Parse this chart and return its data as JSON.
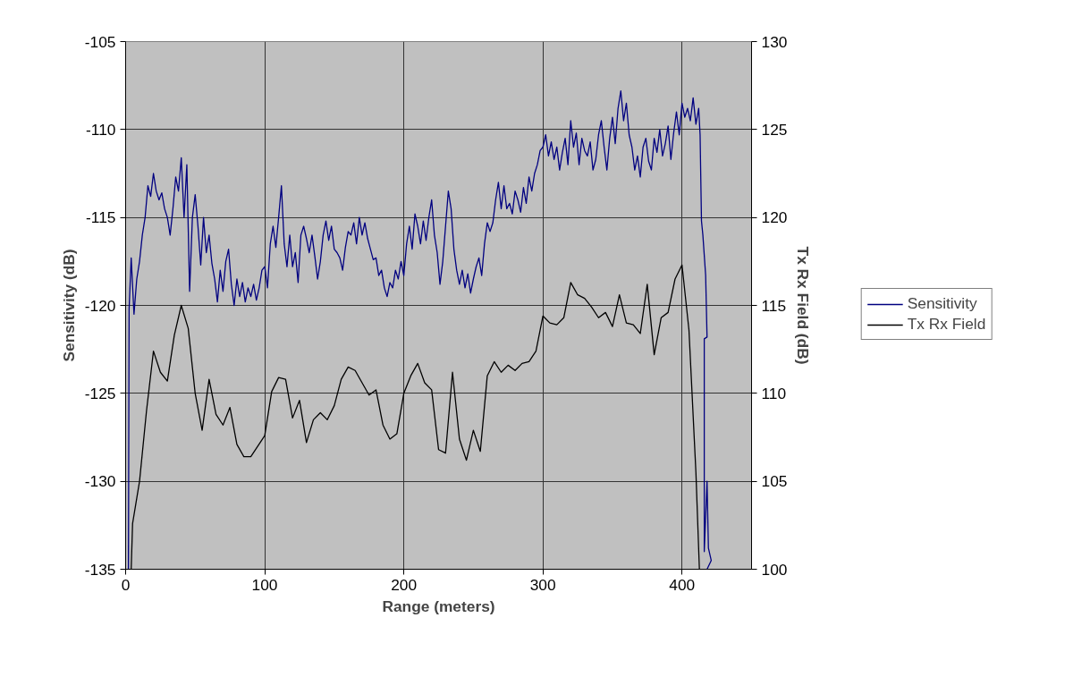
{
  "chart_data": {
    "type": "line",
    "xlabel": "Range (meters)",
    "ylabel": "Sensitivity (dB)",
    "y2label": "Tx Rx Field (dB)",
    "xlim": [
      0,
      450
    ],
    "xticks": [
      0,
      100,
      200,
      300,
      400
    ],
    "ylim": [
      -135,
      -105
    ],
    "yticks": [
      -135,
      -130,
      -125,
      -120,
      -115,
      -110,
      -105
    ],
    "y2lim": [
      100,
      130
    ],
    "y2ticks": [
      100,
      105,
      110,
      115,
      120,
      125,
      130
    ],
    "grid": true,
    "legend": "right",
    "series": [
      {
        "name": "Sensitivity",
        "color": "#000080",
        "x": [
          2,
          2.5,
          4,
          6,
          8,
          10,
          12,
          14,
          16,
          18,
          20,
          22,
          24,
          26,
          28,
          30,
          32,
          34,
          36,
          38,
          40,
          42,
          44,
          46,
          48,
          50,
          52,
          54,
          56,
          58,
          60,
          62,
          64,
          66,
          68,
          70,
          72,
          74,
          76,
          78,
          80,
          82,
          84,
          86,
          88,
          90,
          92,
          94,
          96,
          98,
          100,
          102,
          104,
          106,
          108,
          110,
          112,
          114,
          116,
          118,
          120,
          122,
          124,
          126,
          128,
          130,
          132,
          134,
          136,
          138,
          140,
          142,
          144,
          146,
          148,
          150,
          152,
          154,
          156,
          158,
          160,
          162,
          164,
          166,
          168,
          170,
          172,
          174,
          176,
          178,
          180,
          182,
          184,
          186,
          188,
          190,
          192,
          194,
          196,
          198,
          200,
          202,
          204,
          206,
          208,
          210,
          212,
          214,
          216,
          218,
          220,
          222,
          224,
          226,
          228,
          230,
          232,
          234,
          236,
          238,
          240,
          242,
          244,
          246,
          248,
          250,
          252,
          254,
          256,
          258,
          260,
          262,
          264,
          266,
          268,
          270,
          272,
          274,
          276,
          278,
          280,
          282,
          284,
          286,
          288,
          290,
          292,
          294,
          296,
          298,
          300,
          302,
          304,
          306,
          308,
          310,
          312,
          314,
          316,
          318,
          320,
          322,
          324,
          326,
          328,
          330,
          332,
          334,
          336,
          338,
          340,
          342,
          344,
          346,
          348,
          350,
          352,
          354,
          356,
          358,
          360,
          362,
          364,
          366,
          368,
          370,
          372,
          374,
          376,
          378,
          380,
          382,
          384,
          386,
          388,
          390,
          392,
          394,
          396,
          398,
          400,
          402,
          404,
          406,
          408,
          410,
          412,
          413,
          414,
          415,
          417,
          418,
          416,
          416,
          418,
          419,
          421,
          418
        ],
        "values": [
          -135,
          -120.2,
          -117.3,
          -120.5,
          -118.5,
          -117.5,
          -116,
          -115,
          -113.2,
          -113.8,
          -112.5,
          -113.5,
          -114,
          -113.6,
          -114.5,
          -115,
          -116,
          -114.5,
          -112.7,
          -113.5,
          -111.6,
          -115,
          -112,
          -119.2,
          -115,
          -113.7,
          -115.5,
          -117.7,
          -115,
          -117,
          -116,
          -117.6,
          -118.5,
          -119.8,
          -118,
          -119.2,
          -117.5,
          -116.8,
          -118.8,
          -120,
          -118.5,
          -119.5,
          -118.7,
          -119.8,
          -119,
          -119.5,
          -118.8,
          -119.7,
          -119,
          -118,
          -117.8,
          -119,
          -116.5,
          -115.5,
          -116.7,
          -115,
          -113.2,
          -116.5,
          -117.8,
          -116,
          -117.8,
          -117,
          -118.7,
          -116,
          -115.5,
          -116.2,
          -117,
          -116,
          -117.2,
          -118.5,
          -117.5,
          -116,
          -115.2,
          -116.3,
          -115.5,
          -116.8,
          -117,
          -117.3,
          -118,
          -116.7,
          -115.8,
          -116,
          -115.3,
          -116.5,
          -115,
          -116,
          -115.3,
          -116.2,
          -116.8,
          -117.4,
          -117.3,
          -118.3,
          -118,
          -119,
          -119.5,
          -118.7,
          -119,
          -118,
          -118.5,
          -117.5,
          -118.3,
          -116.5,
          -115.5,
          -116.8,
          -114.8,
          -115.5,
          -116.5,
          -115.2,
          -116.3,
          -115,
          -114,
          -116,
          -117,
          -118.8,
          -117.5,
          -115.5,
          -113.5,
          -114.5,
          -116.8,
          -118,
          -118.8,
          -118,
          -119,
          -118.2,
          -119.3,
          -118.5,
          -117.8,
          -117.3,
          -118.3,
          -116.5,
          -115.3,
          -115.8,
          -115.3,
          -114,
          -113,
          -114.5,
          -113.2,
          -114.5,
          -114.2,
          -114.8,
          -113.5,
          -114,
          -114.7,
          -113.3,
          -114.2,
          -112.7,
          -113.5,
          -112.5,
          -112,
          -111.2,
          -111,
          -110.3,
          -111.5,
          -110.7,
          -111.7,
          -111,
          -112.3,
          -111.3,
          -110.5,
          -112,
          -109.5,
          -111,
          -110.2,
          -112,
          -110.5,
          -111.2,
          -111.5,
          -110.7,
          -112.3,
          -111.7,
          -110.3,
          -109.5,
          -111,
          -112.3,
          -110.5,
          -109.3,
          -110.8,
          -108.8,
          -107.8,
          -109.5,
          -108.5,
          -110.3,
          -111,
          -112.3,
          -111.5,
          -112.7,
          -111,
          -110.5,
          -111.8,
          -112.3,
          -110.5,
          -111.3,
          -110,
          -111.5,
          -110.8,
          -109.8,
          -111.7,
          -110.2,
          -109,
          -110.3,
          -108.5,
          -109.3,
          -108.8,
          -109.5,
          -108.2,
          -109.7,
          -108.8,
          -110.3,
          -115.2,
          -116,
          -118.3,
          -121.8,
          -121.9,
          -134,
          -130,
          -133.8,
          -134.5,
          -135
        ]
      },
      {
        "name": "Tx Rx Field",
        "color": "#000000",
        "axis": "y2",
        "x": [
          4,
          5,
          10,
          15,
          20,
          25,
          30,
          35,
          40,
          45,
          50,
          55,
          60,
          65,
          70,
          75,
          80,
          85,
          90,
          95,
          100,
          105,
          110,
          115,
          120,
          125,
          130,
          135,
          140,
          145,
          150,
          155,
          160,
          165,
          170,
          175,
          180,
          185,
          190,
          195,
          200,
          205,
          210,
          215,
          220,
          225,
          230,
          235,
          240,
          245,
          250,
          255,
          260,
          265,
          270,
          275,
          280,
          285,
          290,
          295,
          300,
          305,
          310,
          315,
          320,
          325,
          330,
          335,
          340,
          345,
          350,
          355,
          360,
          365,
          370,
          375,
          380,
          385,
          390,
          395,
          400,
          405,
          410,
          412.5
        ],
        "values": [
          100,
          102.6,
          105,
          109,
          112.4,
          111.2,
          110.7,
          113.3,
          115,
          113.7,
          110,
          107.9,
          110.8,
          108.8,
          108.2,
          109.2,
          107.1,
          106.4,
          106.4,
          107,
          107.6,
          110.1,
          110.9,
          110.8,
          108.6,
          109.6,
          107.2,
          108.5,
          108.9,
          108.5,
          109.3,
          110.8,
          111.5,
          111.3,
          110.6,
          109.9,
          110.2,
          108.2,
          107.4,
          107.7,
          110,
          111,
          111.7,
          110.6,
          110.2,
          106.8,
          106.6,
          111.2,
          107.4,
          106.2,
          107.9,
          106.7,
          111,
          111.8,
          111.2,
          111.6,
          111.3,
          111.7,
          111.8,
          112.4,
          114.4,
          114,
          113.9,
          114.3,
          116.3,
          115.6,
          115.4,
          114.9,
          114.3,
          114.6,
          113.8,
          115.6,
          114,
          113.9,
          113.4,
          116.2,
          112.2,
          114.3,
          114.6,
          116.5,
          117.3,
          113.6,
          105.5,
          100
        ]
      }
    ]
  }
}
